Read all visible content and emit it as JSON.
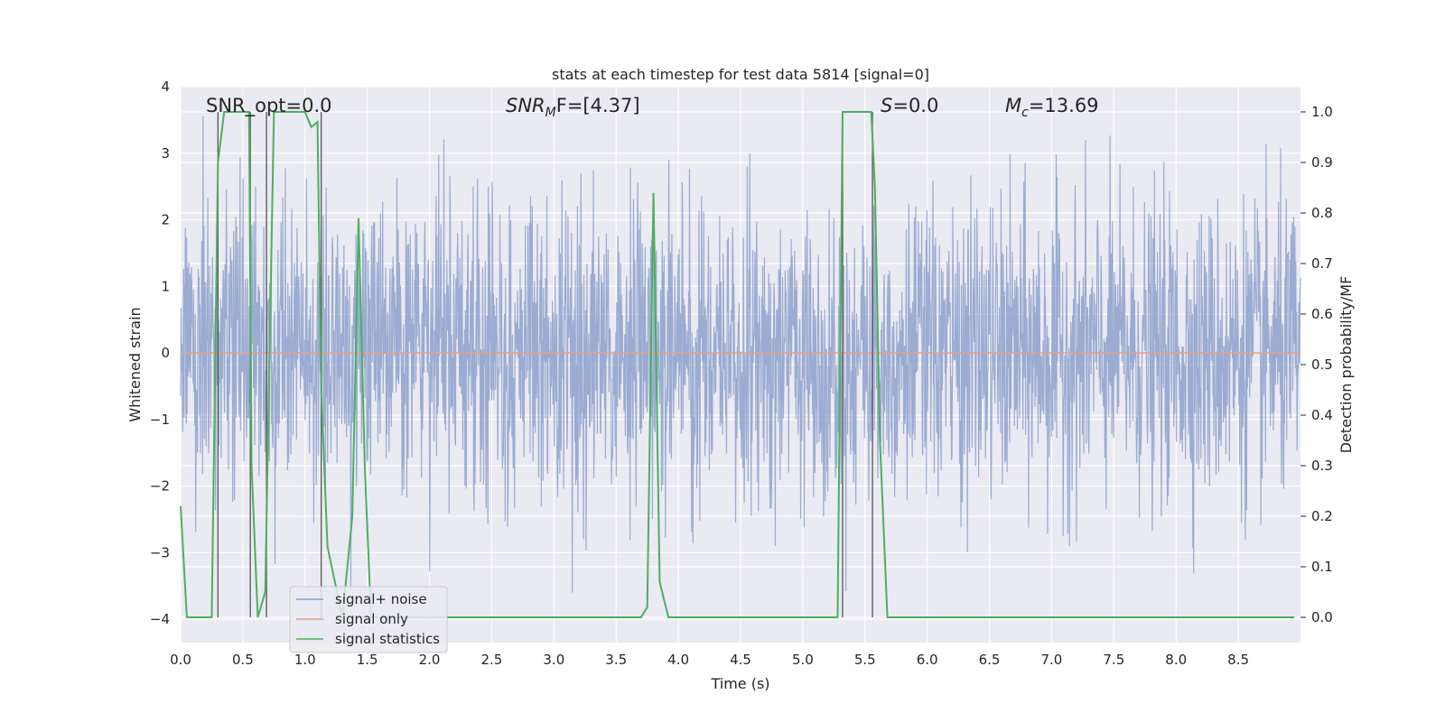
{
  "chart_data": {
    "type": "line",
    "title": "stats at each timestep for test data 5814 [signal=0]",
    "xlabel": "Time (s)",
    "ylabel_left": "Whitened strain",
    "ylabel_right": "Detection probability/MF",
    "xlim": [
      0.0,
      9.0
    ],
    "ylim_left": [
      -4.35,
      4.0
    ],
    "ylim_right": [
      -0.05,
      1.05
    ],
    "xticks": [
      "0.0",
      "0.5",
      "1.0",
      "1.5",
      "2.0",
      "2.5",
      "3.0",
      "3.5",
      "4.0",
      "4.5",
      "5.0",
      "5.5",
      "6.0",
      "6.5",
      "7.0",
      "7.5",
      "8.0",
      "8.5"
    ],
    "yticks_left": [
      "4",
      "3",
      "2",
      "1",
      "0",
      "−1",
      "−2",
      "−3",
      "−4"
    ],
    "yticks_right": [
      "1.0",
      "0.9",
      "0.8",
      "0.7",
      "0.6",
      "0.5",
      "0.4",
      "0.3",
      "0.2",
      "0.1",
      "0.0"
    ],
    "grid": true,
    "legend_position": "lower-left",
    "annotations": {
      "snr_opt": "SNR_opt=0.0",
      "snr_mf_sym": "SNR",
      "snr_mf_sub": "M",
      "snr_mf_rest": "F=[4.37]",
      "s_sym": "S",
      "s_rest": "=0.0",
      "mc_sym": "M",
      "mc_sub": "c",
      "mc_rest": "=13.69"
    },
    "series": [
      {
        "name": "signal+ noise",
        "color": "#8da0cb",
        "description": "whitened noise time series, roughly Gaussian, amplitude mostly within ±2, peaks near ±3.5",
        "amplitude_envelope": 3.6
      },
      {
        "name": "signal only",
        "color": "#e5a08a",
        "x": [
          0.0,
          9.0
        ],
        "y": [
          0.0,
          0.0
        ]
      },
      {
        "name": "signal statistics",
        "color": "#4caf60",
        "axis": "right",
        "x": [
          0.0,
          0.05,
          0.25,
          0.3,
          0.35,
          0.4,
          0.55,
          0.57,
          0.62,
          0.68,
          0.75,
          0.8,
          1.0,
          1.05,
          1.1,
          1.13,
          1.18,
          1.3,
          1.38,
          1.43,
          1.48,
          1.53,
          1.6,
          2.0,
          2.6,
          3.0,
          3.2,
          3.35,
          3.7,
          3.75,
          3.8,
          3.85,
          3.92,
          4.0,
          5.0,
          5.28,
          5.32,
          5.37,
          5.55,
          5.58,
          5.62,
          5.68,
          5.75,
          6.0,
          7.0,
          8.0,
          8.95
        ],
        "y": [
          0.22,
          0.0,
          0.0,
          0.9,
          1.0,
          1.0,
          1.0,
          0.3,
          0.0,
          0.05,
          1.0,
          1.0,
          1.0,
          0.97,
          0.98,
          0.45,
          0.14,
          0.0,
          0.2,
          0.79,
          0.3,
          0.0,
          0.0,
          0.0,
          0.0,
          0.0,
          0.0,
          0.0,
          0.0,
          0.02,
          0.84,
          0.07,
          0.0,
          0.0,
          0.0,
          0.0,
          1.0,
          1.0,
          1.0,
          0.85,
          0.35,
          0.0,
          0.0,
          0.0,
          0.0,
          0.0,
          0.0
        ]
      }
    ],
    "vertical_markers_x": [
      0.3,
      0.56,
      0.69,
      1.13,
      5.32,
      5.56
    ]
  },
  "legend": [
    {
      "label": "signal+ noise",
      "color": "#8da0cb"
    },
    {
      "label": "signal only",
      "color": "#e5a08a"
    },
    {
      "label": "signal statistics",
      "color": "#4caf60"
    }
  ]
}
